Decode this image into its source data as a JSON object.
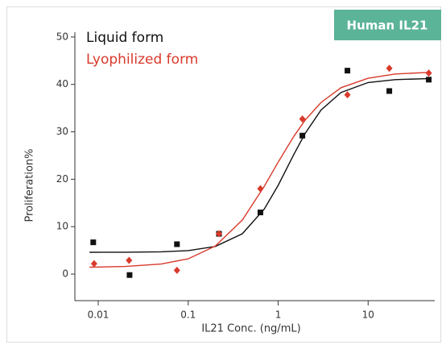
{
  "chart_data": {
    "type": "scatter",
    "badge": "Human IL21",
    "x_label": "IL21 Conc. (ng/mL)",
    "y_label": "Proliferation%",
    "x_log": true,
    "xlim": [
      0.0055,
      55
    ],
    "ylim": [
      -5.6,
      51
    ],
    "xticks": [
      0.01,
      0.1,
      1,
      10
    ],
    "yticks": [
      0,
      10,
      20,
      30,
      40,
      50
    ],
    "series": [
      {
        "name": "Liquid form",
        "color": "#111111",
        "marker": "square",
        "x": [
          0.0088,
          0.0223,
          0.075,
          0.22,
          0.635,
          1.86,
          5.89,
          17.2,
          47.2
        ],
        "values": [
          6.7,
          -0.2,
          6.3,
          8.5,
          13,
          29.2,
          42.9,
          38.6,
          41
        ],
        "fit": {
          "x": [
            0.008,
            0.02,
            0.05,
            0.1,
            0.2,
            0.4,
            0.7,
            1,
            1.5,
            2,
            3,
            5,
            10,
            20,
            50
          ],
          "values": [
            4.6,
            4.62,
            4.7,
            4.96,
            5.82,
            8.5,
            13.7,
            18.7,
            25.3,
            29.7,
            34.6,
            38.3,
            40.4,
            41.0,
            41.25
          ]
        }
      },
      {
        "name": "Lyophilized form",
        "color": "#d93a2b",
        "marker": "diamond",
        "x": [
          0.009,
          0.022,
          0.075,
          0.22,
          0.635,
          1.86,
          5.89,
          17.2,
          47.2
        ],
        "values": [
          2.2,
          2.9,
          0.8,
          8.5,
          18,
          32.7,
          37.8,
          43.4,
          42.4
        ],
        "fit": {
          "x": [
            0.008,
            0.02,
            0.05,
            0.1,
            0.2,
            0.4,
            0.7,
            1,
            1.5,
            2,
            3,
            5,
            10,
            20,
            50
          ],
          "values": [
            1.46,
            1.6,
            2.11,
            3.22,
            5.9,
            11.4,
            18.5,
            23.6,
            29.1,
            32.5,
            36.2,
            39.3,
            41.3,
            42.2,
            42.55
          ]
        }
      }
    ]
  }
}
